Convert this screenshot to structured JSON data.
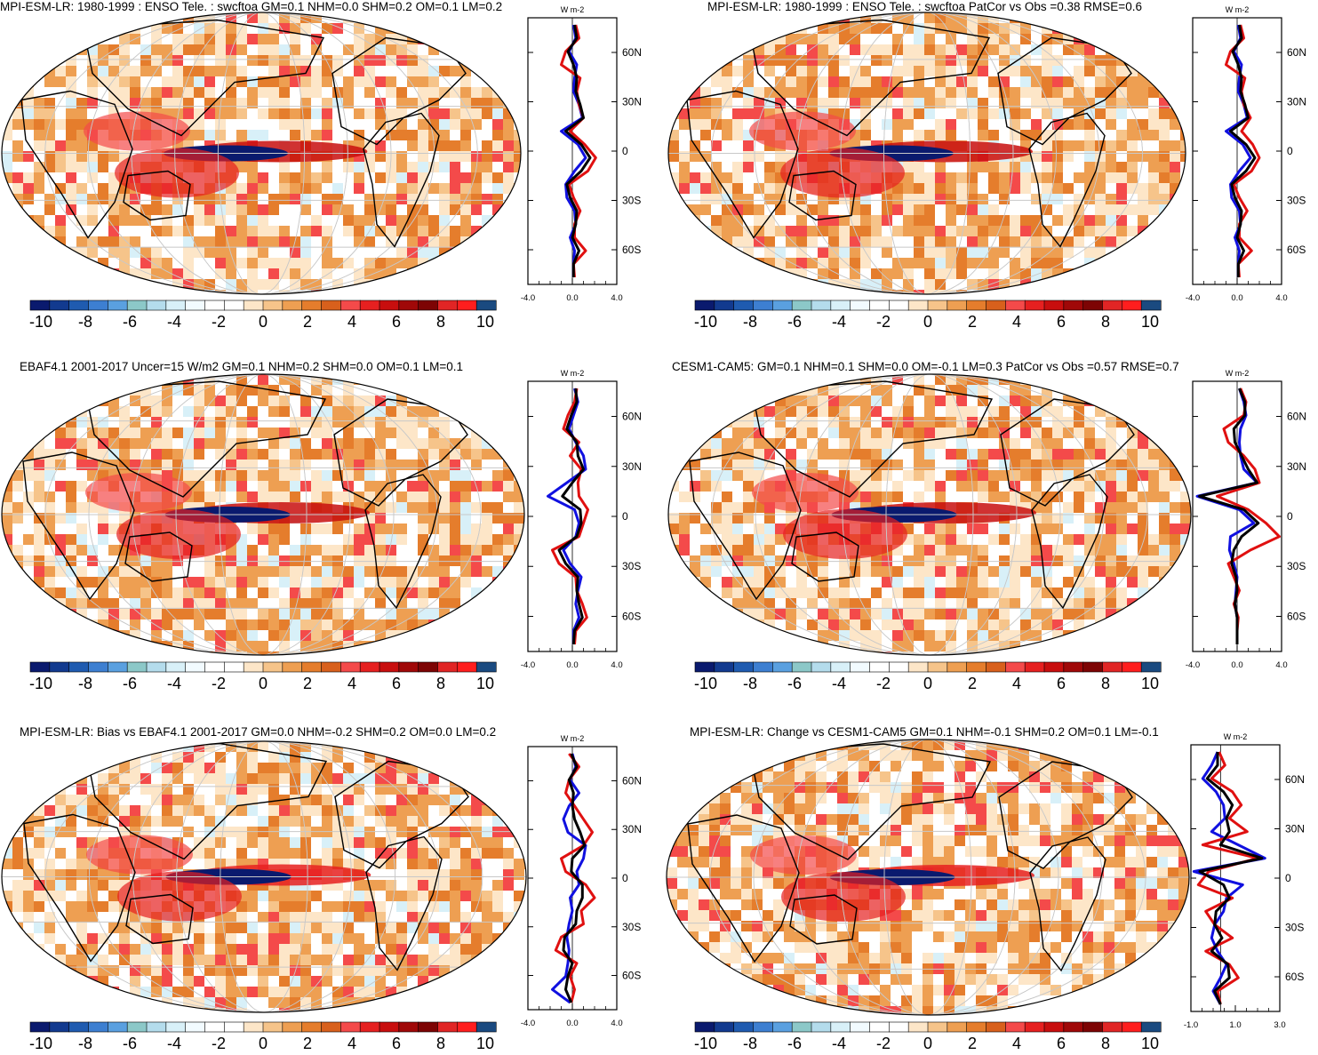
{
  "chart_data": [
    {
      "type": "heatmap",
      "title": "MPI-ESM-LR: 1980-1999 : ENSO Tele. : swcftoa GM=0.1 NHM=0.0 SHM=0.2 OM=0.1 LM=0.2",
      "colorbar_ticks": [
        "-10",
        "-8",
        "-6",
        "-4",
        "-2",
        "0",
        "2",
        "4",
        "6",
        "8",
        "10"
      ],
      "zonal_mean": {
        "units": "W m-2",
        "y_ticks": [
          "60N",
          "30N",
          "0",
          "30S",
          "60S"
        ],
        "x_ticks": [
          "-4.0",
          "0.0",
          "4.0"
        ],
        "xlim": [
          -4,
          4
        ],
        "series": [
          {
            "name": "blue",
            "color": "#1010e0",
            "values": [
              0.1,
              0.3,
              -0.3,
              0.4,
              0.2,
              0.1,
              0.6,
              0.9,
              -1.0,
              0.5,
              1.2,
              0.2,
              -0.6,
              -0.5,
              0.2,
              0.3,
              -0.2,
              0.2,
              0.1,
              0.1
            ]
          },
          {
            "name": "red",
            "color": "#e01010",
            "values": [
              0.3,
              0.6,
              -0.6,
              -1.0,
              0.7,
              0.4,
              0.6,
              1.0,
              -0.2,
              1.1,
              2.1,
              1.4,
              -0.3,
              0.1,
              0.7,
              0.2,
              0.2,
              1.2,
              0.1,
              0.2
            ]
          },
          {
            "name": "black",
            "color": "#000000",
            "values": [
              0.2,
              0.4,
              -0.4,
              0.1,
              0.4,
              0.3,
              0.7,
              1.0,
              -0.6,
              0.8,
              1.6,
              0.8,
              -0.5,
              -0.2,
              0.4,
              0.3,
              0.0,
              0.6,
              0.1,
              0.1
            ]
          }
        ]
      }
    },
    {
      "type": "heatmap",
      "title": "MPI-ESM-LR: 1980-1999 : ENSO Tele. : swcftoa PatCor vs Obs =0.38 RMSE=0.6",
      "colorbar_ticks": [
        "-10",
        "-8",
        "-6",
        "-4",
        "-2",
        "0",
        "2",
        "4",
        "6",
        "8",
        "10"
      ],
      "zonal_mean": {
        "units": "W m-2",
        "y_ticks": [
          "60N",
          "30N",
          "0",
          "30S",
          "60S"
        ],
        "x_ticks": [
          "-4.0",
          "0.0",
          "4.0"
        ],
        "xlim": [
          -4,
          4
        ],
        "series": [
          {
            "name": "blue",
            "color": "#1010e0",
            "values": [
              0.1,
              0.3,
              -0.3,
              0.4,
              0.2,
              0.1,
              0.6,
              0.9,
              -1.0,
              0.5,
              1.2,
              0.2,
              -0.6,
              -0.5,
              0.2,
              0.3,
              -0.2,
              0.2,
              0.1,
              0.1
            ]
          },
          {
            "name": "red",
            "color": "#e01010",
            "values": [
              0.3,
              0.6,
              -0.6,
              -1.0,
              0.7,
              0.4,
              0.6,
              1.2,
              0.4,
              1.4,
              2.0,
              1.3,
              -0.3,
              0.2,
              0.9,
              0.2,
              0.2,
              1.3,
              0.1,
              0.2
            ]
          },
          {
            "name": "black",
            "color": "#000000",
            "values": [
              0.2,
              0.4,
              -0.4,
              0.1,
              0.4,
              0.3,
              0.7,
              1.0,
              -0.6,
              0.8,
              1.6,
              0.8,
              -0.5,
              -0.2,
              0.4,
              0.3,
              0.0,
              0.6,
              0.1,
              0.1
            ]
          }
        ]
      }
    },
    {
      "type": "heatmap",
      "title": "EBAF4.1 2001-2017 Uncer=15 W/m2 GM=0.1 NHM=0.2 SHM=0.0 OM=0.1 LM=0.1",
      "colorbar_ticks": [
        "-10",
        "-8",
        "-6",
        "-4",
        "-2",
        "0",
        "2",
        "4",
        "6",
        "8",
        "10"
      ],
      "zonal_mean": {
        "units": "W m-2",
        "y_ticks": [
          "60N",
          "30N",
          "0",
          "30S",
          "60S"
        ],
        "x_ticks": [
          "-4.0",
          "0.0",
          "4.0"
        ],
        "xlim": [
          -4,
          4
        ],
        "series": [
          {
            "name": "blue",
            "color": "#1010e0",
            "values": [
              0.2,
              0.5,
              0.1,
              -0.3,
              0.3,
              1.0,
              1.2,
              -0.5,
              -2.2,
              0.2,
              0.6,
              0.3,
              -0.8,
              -0.2,
              0.8,
              0.5,
              0.3,
              0.6,
              0.1,
              0.1
            ]
          },
          {
            "name": "red",
            "color": "#e01010",
            "values": [
              0.4,
              0.2,
              -0.4,
              -0.8,
              0.6,
              -0.2,
              0.8,
              0.5,
              0.6,
              1.4,
              1.0,
              0.6,
              -1.8,
              -1.2,
              0.3,
              0.4,
              0.9,
              1.3,
              0.3,
              0.2
            ]
          },
          {
            "name": "black",
            "color": "#000000",
            "values": [
              0.3,
              0.4,
              -0.1,
              -0.5,
              0.4,
              0.5,
              1.0,
              0.0,
              -0.9,
              0.7,
              0.8,
              0.4,
              -1.2,
              -0.6,
              0.5,
              0.4,
              0.6,
              0.9,
              0.2,
              0.1
            ]
          }
        ]
      }
    },
    {
      "type": "heatmap",
      "title": "CESM1-CAM5: GM=0.1 NHM=0.1 SHM=0.0 OM=-0.1 LM=0.3 PatCor vs Obs =0.57 RMSE=0.7",
      "colorbar_ticks": [
        "-10",
        "-8",
        "-6",
        "-4",
        "-2",
        "0",
        "2",
        "4",
        "6",
        "8",
        "10"
      ],
      "zonal_mean": {
        "units": "W m-2",
        "y_ticks": [
          "60N",
          "30N",
          "0",
          "30S",
          "60S"
        ],
        "x_ticks": [
          "-4.0",
          "0.0",
          "4.0"
        ],
        "xlim": [
          -4,
          4
        ],
        "series": [
          {
            "name": "blue",
            "color": "#1010e0",
            "values": [
              0.2,
              0.6,
              0.8,
              0.3,
              0.2,
              0.3,
              0.6,
              1.8,
              -3.6,
              0.2,
              1.5,
              -0.6,
              -0.7,
              -0.3,
              0.0,
              -0.1,
              -0.2,
              0.0,
              0.0,
              0.0
            ]
          },
          {
            "name": "red",
            "color": "#e01010",
            "values": [
              0.3,
              0.8,
              0.6,
              -1.2,
              -0.8,
              0.6,
              1.6,
              2.0,
              -1.8,
              1.0,
              2.6,
              3.8,
              1.2,
              -0.8,
              -0.3,
              0.2,
              -0.3,
              0.1,
              0.0,
              0.0
            ]
          },
          {
            "name": "black",
            "color": "#000000",
            "values": [
              0.2,
              0.7,
              0.7,
              -0.3,
              -0.2,
              0.4,
              1.0,
              1.8,
              -3.4,
              0.6,
              1.9,
              0.4,
              -0.3,
              -0.5,
              -0.1,
              0.0,
              -0.2,
              0.0,
              0.0,
              0.0
            ]
          }
        ]
      }
    },
    {
      "type": "heatmap",
      "title": "MPI-ESM-LR: Bias vs EBAF4.1 2001-2017 GM=0.0 NHM=-0.2 SHM=0.2 OM=0.0 LM=0.2",
      "colorbar_ticks": [
        "-10",
        "-8",
        "-6",
        "-4",
        "-2",
        "0",
        "2",
        "4",
        "6",
        "8",
        "10"
      ],
      "zonal_mean": {
        "units": "W m-2",
        "y_ticks": [
          "60N",
          "30N",
          "0",
          "30S",
          "60S"
        ],
        "x_ticks": [
          "-4.0",
          "0.0",
          "4.0"
        ],
        "xlim": [
          -4,
          4
        ],
        "series": [
          {
            "name": "blue",
            "color": "#1010e0",
            "values": [
              0.0,
              0.3,
              -0.2,
              0.6,
              -0.3,
              -0.8,
              -0.4,
              1.2,
              1.0,
              0.4,
              0.6,
              -0.2,
              0.0,
              -0.3,
              -0.5,
              -0.3,
              -0.4,
              -0.6,
              -1.8,
              -0.2
            ]
          },
          {
            "name": "red",
            "color": "#e01010",
            "values": [
              -0.3,
              0.6,
              -0.3,
              -0.6,
              0.2,
              1.0,
              1.8,
              1.0,
              -1.0,
              -0.6,
              1.2,
              2.0,
              0.8,
              1.0,
              -1.0,
              -1.5,
              0.4,
              -0.2,
              0.2,
              -0.1
            ]
          },
          {
            "name": "black",
            "color": "#000000",
            "values": [
              -0.1,
              0.4,
              -0.3,
              0.1,
              0.0,
              0.2,
              0.7,
              1.1,
              0.0,
              -0.1,
              0.9,
              0.9,
              0.4,
              0.3,
              -0.7,
              -0.8,
              0.0,
              -0.4,
              -0.6,
              -0.1
            ]
          }
        ]
      }
    },
    {
      "type": "heatmap",
      "title": "MPI-ESM-LR: Change vs CESM1-CAM5 GM=0.1 NHM=-0.1 SHM=0.2 OM=0.1 LM=-0.1",
      "colorbar_ticks": [
        "-10",
        "-8",
        "-6",
        "-4",
        "-2",
        "0",
        "2",
        "4",
        "6",
        "8",
        "10"
      ],
      "zonal_mean": {
        "units": "W m-2",
        "y_ticks": [
          "60N",
          "30N",
          "0",
          "30S",
          "60S"
        ],
        "x_ticks": [
          "-1.0",
          "1.0",
          "3.0"
        ],
        "xlim": [
          -2,
          4
        ],
        "series": [
          {
            "name": "blue",
            "color": "#1010e0",
            "values": [
              -0.2,
              -0.6,
              -1.2,
              -0.3,
              0.2,
              0.3,
              -0.6,
              1.2,
              3.0,
              -1.8,
              1.5,
              0.4,
              0.2,
              -0.4,
              -0.6,
              -0.2,
              0.4,
              0.0,
              -0.5,
              0.0
            ]
          },
          {
            "name": "red",
            "color": "#e01010",
            "values": [
              -0.1,
              0.3,
              -0.6,
              0.8,
              1.4,
              0.6,
              1.8,
              -1.2,
              2.5,
              -0.8,
              -1.5,
              0.8,
              -1.0,
              -0.4,
              0.8,
              -1.0,
              0.6,
              1.2,
              -0.2,
              0.0
            ]
          },
          {
            "name": "black",
            "color": "#000000",
            "values": [
              -0.2,
              -0.2,
              -0.9,
              0.2,
              0.8,
              0.4,
              0.6,
              0.0,
              2.8,
              -1.4,
              0.2,
              0.6,
              -0.3,
              -0.4,
              0.1,
              -0.6,
              0.5,
              0.6,
              -0.4,
              0.0
            ]
          }
        ]
      }
    }
  ],
  "palette": [
    "#0a1a6e",
    "#123a8f",
    "#1f5bb0",
    "#3d7fd1",
    "#5aa0e0",
    "#8cc8c8",
    "#b4dcec",
    "#d8f0f8",
    "#f2fbff",
    "#ffffff",
    "#ffffff",
    "#fde6c8",
    "#f6c48a",
    "#ee9f52",
    "#e57d2c",
    "#d8601c",
    "#f44a4a",
    "#e62020",
    "#c80e0e",
    "#a00808",
    "#7d0404",
    "#e12525",
    "#ff1e1e",
    "#1a4a80"
  ],
  "colors": {
    "land_outline": "#000000",
    "grid": "#c8c8c8"
  }
}
